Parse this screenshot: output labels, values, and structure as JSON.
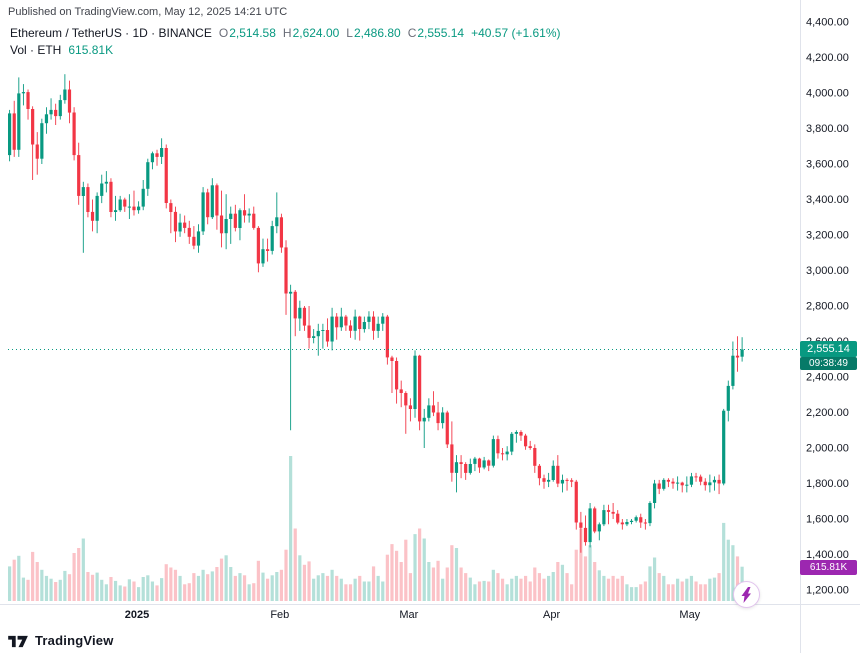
{
  "header": {
    "published": "Published on TradingView.com, May 12, 2025 14:21 UTC"
  },
  "legend": {
    "title": "Ethereum / TetherUS · 1D · BINANCE",
    "o_label": "O",
    "o_value": "2,514.58",
    "h_label": "H",
    "h_value": "2,624.00",
    "l_label": "L",
    "l_value": "2,486.80",
    "c_label": "C",
    "c_value": "2,555.14",
    "change": "+40.57 (+1.61%)",
    "volume_label": "Vol · ETH",
    "volume_value": "615.81K"
  },
  "price_axis": {
    "labels": [
      "4,400.00",
      "4,200.00",
      "4,000.00",
      "3,800.00",
      "3,600.00",
      "3,400.00",
      "3,200.00",
      "3,000.00",
      "2,800.00",
      "2,600.00",
      "2,400.00",
      "2,200.00",
      "2,000.00",
      "1,800.00",
      "1,600.00",
      "1,400.00",
      "1,200.00"
    ],
    "last_badge": "2,555.14",
    "countdown": "09:38:49",
    "volume_badge": "615.81K"
  },
  "footer": {
    "logo_text": "TradingView"
  },
  "icons": {
    "lightning": "lightning-bolt",
    "logo": "tradingview-mark"
  },
  "colors": {
    "up": "#089981",
    "down": "#f23645",
    "vol_up": "rgba(8,153,129,0.30)",
    "vol_down": "rgba(242,54,69,0.30)",
    "grid": "#e0e3eb",
    "axis_text": "#131722",
    "countdown": "#077a68",
    "volume_badge": "#9c27b0",
    "bolt": "#9c27b0"
  },
  "chart_data": {
    "type": "candlestick+volume",
    "symbol": "Ethereum / TetherUS",
    "exchange": "BINANCE",
    "interval": "1D",
    "ylim": [
      1200,
      4400
    ],
    "last_close": 2555.14,
    "last_volume_k": 615.81,
    "month_ticks": [
      {
        "label": "2025",
        "index": 28,
        "bold": true
      },
      {
        "label": "Feb",
        "index": 59
      },
      {
        "label": "Mar",
        "index": 87
      },
      {
        "label": "Apr",
        "index": 118
      },
      {
        "label": "May",
        "index": 148
      }
    ],
    "columns": [
      "date",
      "open",
      "high",
      "low",
      "close",
      "volume_k_eth"
    ],
    "candles": [
      [
        "2024-12-04",
        3650,
        3905,
        3615,
        3885,
        620
      ],
      [
        "2024-12-05",
        3885,
        3956,
        3640,
        3680,
        740
      ],
      [
        "2024-12-06",
        3680,
        4088,
        3640,
        3998,
        810
      ],
      [
        "2024-12-07",
        3998,
        4050,
        3930,
        4005,
        420
      ],
      [
        "2024-12-08",
        4005,
        4020,
        3850,
        3910,
        380
      ],
      [
        "2024-12-09",
        3910,
        3925,
        3510,
        3710,
        880
      ],
      [
        "2024-12-10",
        3710,
        3780,
        3540,
        3630,
        700
      ],
      [
        "2024-12-11",
        3630,
        3855,
        3600,
        3830,
        560
      ],
      [
        "2024-12-12",
        3830,
        3920,
        3770,
        3880,
        450
      ],
      [
        "2024-12-13",
        3880,
        3970,
        3850,
        3905,
        400
      ],
      [
        "2024-12-14",
        3905,
        3940,
        3820,
        3870,
        340
      ],
      [
        "2024-12-15",
        3870,
        3990,
        3850,
        3960,
        380
      ],
      [
        "2024-12-16",
        3960,
        4106,
        3940,
        4020,
        540
      ],
      [
        "2024-12-17",
        4020,
        4070,
        3830,
        3890,
        480
      ],
      [
        "2024-12-18",
        3890,
        3920,
        3620,
        3650,
        860
      ],
      [
        "2024-12-19",
        3650,
        3720,
        3370,
        3420,
        950
      ],
      [
        "2024-12-20",
        3420,
        3500,
        3100,
        3470,
        1120
      ],
      [
        "2024-12-21",
        3470,
        3490,
        3300,
        3330,
        520
      ],
      [
        "2024-12-22",
        3330,
        3400,
        3220,
        3280,
        470
      ],
      [
        "2024-12-23",
        3280,
        3440,
        3210,
        3420,
        510
      ],
      [
        "2024-12-24",
        3420,
        3540,
        3380,
        3490,
        380
      ],
      [
        "2024-12-25",
        3490,
        3560,
        3440,
        3500,
        300
      ],
      [
        "2024-12-26",
        3500,
        3520,
        3300,
        3330,
        430
      ],
      [
        "2024-12-27",
        3330,
        3420,
        3280,
        3340,
        360
      ],
      [
        "2024-12-28",
        3340,
        3420,
        3330,
        3400,
        280
      ],
      [
        "2024-12-29",
        3400,
        3410,
        3330,
        3360,
        260
      ],
      [
        "2024-12-30",
        3360,
        3430,
        3290,
        3360,
        390
      ],
      [
        "2024-12-31",
        3360,
        3450,
        3310,
        3340,
        350
      ],
      [
        "2025-01-01",
        3340,
        3390,
        3320,
        3360,
        250
      ],
      [
        "2025-01-02",
        3360,
        3510,
        3340,
        3460,
        430
      ],
      [
        "2025-01-03",
        3460,
        3630,
        3420,
        3610,
        460
      ],
      [
        "2025-01-04",
        3610,
        3670,
        3570,
        3660,
        350
      ],
      [
        "2025-01-05",
        3660,
        3680,
        3590,
        3640,
        280
      ],
      [
        "2025-01-06",
        3640,
        3745,
        3600,
        3690,
        410
      ],
      [
        "2025-01-07",
        3690,
        3710,
        3350,
        3380,
        660
      ],
      [
        "2025-01-08",
        3380,
        3400,
        3210,
        3330,
        600
      ],
      [
        "2025-01-09",
        3330,
        3360,
        3160,
        3220,
        560
      ],
      [
        "2025-01-10",
        3220,
        3320,
        3190,
        3270,
        450
      ],
      [
        "2025-01-11",
        3270,
        3310,
        3210,
        3240,
        300
      ],
      [
        "2025-01-12",
        3240,
        3280,
        3150,
        3190,
        320
      ],
      [
        "2025-01-13",
        3190,
        3250,
        3120,
        3140,
        500
      ],
      [
        "2025-01-14",
        3140,
        3260,
        3100,
        3220,
        450
      ],
      [
        "2025-01-15",
        3220,
        3470,
        3200,
        3440,
        560
      ],
      [
        "2025-01-16",
        3440,
        3460,
        3260,
        3300,
        480
      ],
      [
        "2025-01-17",
        3300,
        3520,
        3290,
        3480,
        530
      ],
      [
        "2025-01-18",
        3480,
        3490,
        3230,
        3310,
        610
      ],
      [
        "2025-01-19",
        3310,
        3450,
        3130,
        3210,
        760
      ],
      [
        "2025-01-20",
        3210,
        3430,
        3120,
        3290,
        820
      ],
      [
        "2025-01-21",
        3290,
        3360,
        3150,
        3320,
        610
      ],
      [
        "2025-01-22",
        3320,
        3370,
        3220,
        3240,
        450
      ],
      [
        "2025-01-23",
        3240,
        3350,
        3170,
        3340,
        500
      ],
      [
        "2025-01-24",
        3340,
        3430,
        3270,
        3310,
        460
      ],
      [
        "2025-01-25",
        3310,
        3350,
        3270,
        3320,
        300
      ],
      [
        "2025-01-26",
        3320,
        3360,
        3230,
        3240,
        320
      ],
      [
        "2025-01-27",
        3240,
        3250,
        2990,
        3040,
        720
      ],
      [
        "2025-01-28",
        3040,
        3180,
        3020,
        3120,
        510
      ],
      [
        "2025-01-29",
        3120,
        3180,
        3050,
        3110,
        400
      ],
      [
        "2025-01-30",
        3110,
        3280,
        3090,
        3250,
        460
      ],
      [
        "2025-01-31",
        3250,
        3440,
        3210,
        3300,
        520
      ],
      [
        "2025-02-01",
        3300,
        3320,
        3100,
        3130,
        560
      ],
      [
        "2025-02-02",
        3130,
        3170,
        2750,
        2870,
        920
      ],
      [
        "2025-02-03",
        2870,
        2920,
        2100,
        2880,
        2600
      ],
      [
        "2025-02-04",
        2880,
        2890,
        2630,
        2730,
        1300
      ],
      [
        "2025-02-05",
        2730,
        2830,
        2660,
        2790,
        820
      ],
      [
        "2025-02-06",
        2790,
        2800,
        2660,
        2690,
        650
      ],
      [
        "2025-02-07",
        2690,
        2800,
        2560,
        2620,
        710
      ],
      [
        "2025-02-08",
        2620,
        2670,
        2590,
        2630,
        400
      ],
      [
        "2025-02-09",
        2630,
        2700,
        2520,
        2660,
        460
      ],
      [
        "2025-02-10",
        2660,
        2700,
        2560,
        2665,
        500
      ],
      [
        "2025-02-11",
        2665,
        2730,
        2570,
        2600,
        450
      ],
      [
        "2025-02-12",
        2600,
        2790,
        2550,
        2740,
        560
      ],
      [
        "2025-02-13",
        2740,
        2760,
        2610,
        2680,
        450
      ],
      [
        "2025-02-14",
        2680,
        2790,
        2660,
        2740,
        400
      ],
      [
        "2025-02-15",
        2740,
        2750,
        2660,
        2690,
        300
      ],
      [
        "2025-02-16",
        2690,
        2720,
        2620,
        2660,
        300
      ],
      [
        "2025-02-17",
        2660,
        2780,
        2610,
        2740,
        400
      ],
      [
        "2025-02-18",
        2740,
        2745,
        2605,
        2670,
        450
      ],
      [
        "2025-02-19",
        2670,
        2740,
        2650,
        2710,
        350
      ],
      [
        "2025-02-20",
        2710,
        2770,
        2670,
        2740,
        350
      ],
      [
        "2025-02-21",
        2740,
        2770,
        2610,
        2660,
        620
      ],
      [
        "2025-02-22",
        2660,
        2740,
        2620,
        2700,
        450
      ],
      [
        "2025-02-23",
        2700,
        2760,
        2660,
        2740,
        350
      ],
      [
        "2025-02-24",
        2740,
        2750,
        2470,
        2510,
        830
      ],
      [
        "2025-02-25",
        2510,
        2520,
        2310,
        2490,
        1020
      ],
      [
        "2025-02-26",
        2490,
        2510,
        2250,
        2330,
        900
      ],
      [
        "2025-02-27",
        2330,
        2380,
        2230,
        2310,
        700
      ],
      [
        "2025-02-28",
        2310,
        2320,
        2080,
        2240,
        1100
      ],
      [
        "2025-03-01",
        2240,
        2280,
        2150,
        2220,
        500
      ],
      [
        "2025-03-02",
        2220,
        2550,
        2170,
        2520,
        1200
      ],
      [
        "2025-03-03",
        2520,
        2525,
        2100,
        2150,
        1300
      ],
      [
        "2025-03-04",
        2150,
        2220,
        2000,
        2170,
        1120
      ],
      [
        "2025-03-05",
        2170,
        2280,
        2150,
        2240,
        700
      ],
      [
        "2025-03-06",
        2240,
        2320,
        2180,
        2200,
        600
      ],
      [
        "2025-03-07",
        2200,
        2260,
        2100,
        2140,
        720
      ],
      [
        "2025-03-08",
        2140,
        2230,
        2110,
        2200,
        400
      ],
      [
        "2025-03-09",
        2200,
        2210,
        2000,
        2020,
        600
      ],
      [
        "2025-03-10",
        2020,
        2150,
        1810,
        1860,
        1000
      ],
      [
        "2025-03-11",
        1860,
        1960,
        1750,
        1920,
        950
      ],
      [
        "2025-03-12",
        1920,
        1960,
        1830,
        1910,
        600
      ],
      [
        "2025-03-13",
        1910,
        1920,
        1820,
        1860,
        500
      ],
      [
        "2025-03-14",
        1860,
        1940,
        1850,
        1910,
        420
      ],
      [
        "2025-03-15",
        1910,
        1950,
        1870,
        1940,
        300
      ],
      [
        "2025-03-16",
        1940,
        1945,
        1860,
        1890,
        350
      ],
      [
        "2025-03-17",
        1890,
        1950,
        1880,
        1930,
        360
      ],
      [
        "2025-03-18",
        1930,
        1935,
        1870,
        1900,
        350
      ],
      [
        "2025-03-19",
        1900,
        2070,
        1890,
        2050,
        560
      ],
      [
        "2025-03-20",
        2050,
        2070,
        1940,
        1970,
        500
      ],
      [
        "2025-03-21",
        1970,
        2000,
        1930,
        1965,
        400
      ],
      [
        "2025-03-22",
        1965,
        2010,
        1930,
        1980,
        300
      ],
      [
        "2025-03-23",
        1980,
        2090,
        1960,
        2080,
        400
      ],
      [
        "2025-03-24",
        2080,
        2100,
        2030,
        2090,
        450
      ],
      [
        "2025-03-25",
        2090,
        2100,
        2040,
        2070,
        400
      ],
      [
        "2025-03-26",
        2070,
        2080,
        1990,
        2010,
        450
      ],
      [
        "2025-03-27",
        2010,
        2040,
        1990,
        2000,
        350
      ],
      [
        "2025-03-28",
        2000,
        2020,
        1860,
        1900,
        600
      ],
      [
        "2025-03-29",
        1900,
        1910,
        1790,
        1830,
        500
      ],
      [
        "2025-03-30",
        1830,
        1850,
        1770,
        1810,
        400
      ],
      [
        "2025-03-31",
        1810,
        1860,
        1780,
        1820,
        450
      ],
      [
        "2025-04-01",
        1820,
        1930,
        1810,
        1900,
        520
      ],
      [
        "2025-04-02",
        1900,
        1960,
        1780,
        1800,
        700
      ],
      [
        "2025-04-03",
        1800,
        1850,
        1750,
        1820,
        650
      ],
      [
        "2025-04-04",
        1820,
        1830,
        1760,
        1818,
        500
      ],
      [
        "2025-04-05",
        1818,
        1830,
        1780,
        1810,
        300
      ],
      [
        "2025-04-06",
        1810,
        1820,
        1540,
        1580,
        920
      ],
      [
        "2025-04-07",
        1580,
        1640,
        1410,
        1550,
        1300
      ],
      [
        "2025-04-08",
        1550,
        1620,
        1450,
        1470,
        800
      ],
      [
        "2025-04-09",
        1470,
        1690,
        1440,
        1660,
        1000
      ],
      [
        "2025-04-10",
        1660,
        1670,
        1520,
        1530,
        700
      ],
      [
        "2025-04-11",
        1530,
        1580,
        1480,
        1570,
        550
      ],
      [
        "2025-04-12",
        1570,
        1680,
        1560,
        1650,
        450
      ],
      [
        "2025-04-13",
        1650,
        1680,
        1570,
        1640,
        400
      ],
      [
        "2025-04-14",
        1640,
        1690,
        1600,
        1630,
        450
      ],
      [
        "2025-04-15",
        1630,
        1650,
        1570,
        1580,
        400
      ],
      [
        "2025-04-16",
        1580,
        1600,
        1540,
        1570,
        450
      ],
      [
        "2025-04-17",
        1570,
        1600,
        1560,
        1583,
        300
      ],
      [
        "2025-04-18",
        1583,
        1600,
        1570,
        1590,
        250
      ],
      [
        "2025-04-19",
        1590,
        1620,
        1580,
        1610,
        250
      ],
      [
        "2025-04-20",
        1610,
        1630,
        1550,
        1580,
        300
      ],
      [
        "2025-04-21",
        1580,
        1600,
        1540,
        1577,
        350
      ],
      [
        "2025-04-22",
        1577,
        1700,
        1560,
        1690,
        620
      ],
      [
        "2025-04-23",
        1690,
        1820,
        1660,
        1800,
        780
      ],
      [
        "2025-04-24",
        1800,
        1820,
        1740,
        1770,
        500
      ],
      [
        "2025-04-25",
        1770,
        1830,
        1760,
        1820,
        450
      ],
      [
        "2025-04-26",
        1820,
        1830,
        1780,
        1810,
        300
      ],
      [
        "2025-04-27",
        1810,
        1830,
        1770,
        1800,
        300
      ],
      [
        "2025-04-28",
        1800,
        1840,
        1760,
        1805,
        400
      ],
      [
        "2025-04-29",
        1805,
        1810,
        1750,
        1790,
        350
      ],
      [
        "2025-04-30",
        1790,
        1840,
        1750,
        1793,
        400
      ],
      [
        "2025-05-01",
        1793,
        1860,
        1780,
        1840,
        450
      ],
      [
        "2025-05-02",
        1840,
        1860,
        1810,
        1839,
        350
      ],
      [
        "2025-05-03",
        1839,
        1850,
        1790,
        1810,
        300
      ],
      [
        "2025-05-04",
        1810,
        1830,
        1760,
        1790,
        300
      ],
      [
        "2025-05-05",
        1790,
        1850,
        1750,
        1806,
        400
      ],
      [
        "2025-05-06",
        1806,
        1840,
        1760,
        1820,
        420
      ],
      [
        "2025-05-07",
        1820,
        1850,
        1740,
        1800,
        500
      ],
      [
        "2025-05-08",
        1800,
        2220,
        1790,
        2210,
        1400
      ],
      [
        "2025-05-09",
        2210,
        2380,
        2150,
        2350,
        1100
      ],
      [
        "2025-05-10",
        2350,
        2600,
        2330,
        2520,
        1000
      ],
      [
        "2025-05-11",
        2520,
        2630,
        2430,
        2510,
        800
      ],
      [
        "2025-05-12",
        2514.58,
        2624.0,
        2486.8,
        2555.14,
        615.81
      ]
    ]
  }
}
